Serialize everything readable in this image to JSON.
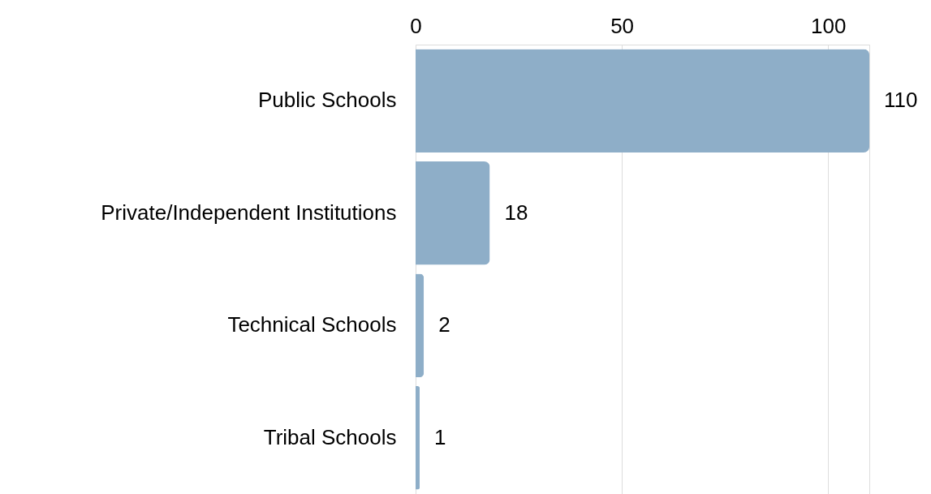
{
  "chart_data": {
    "type": "bar",
    "orientation": "horizontal",
    "categories": [
      "Public Schools",
      "Private/Independent Institutions",
      "Technical Schools",
      "Tribal Schools"
    ],
    "values": [
      110,
      18,
      2,
      1
    ],
    "color": "#8eaec8",
    "xlim": [
      0,
      110
    ],
    "xticks": [
      0,
      50,
      100
    ],
    "grid": "x",
    "data_labels": true
  }
}
